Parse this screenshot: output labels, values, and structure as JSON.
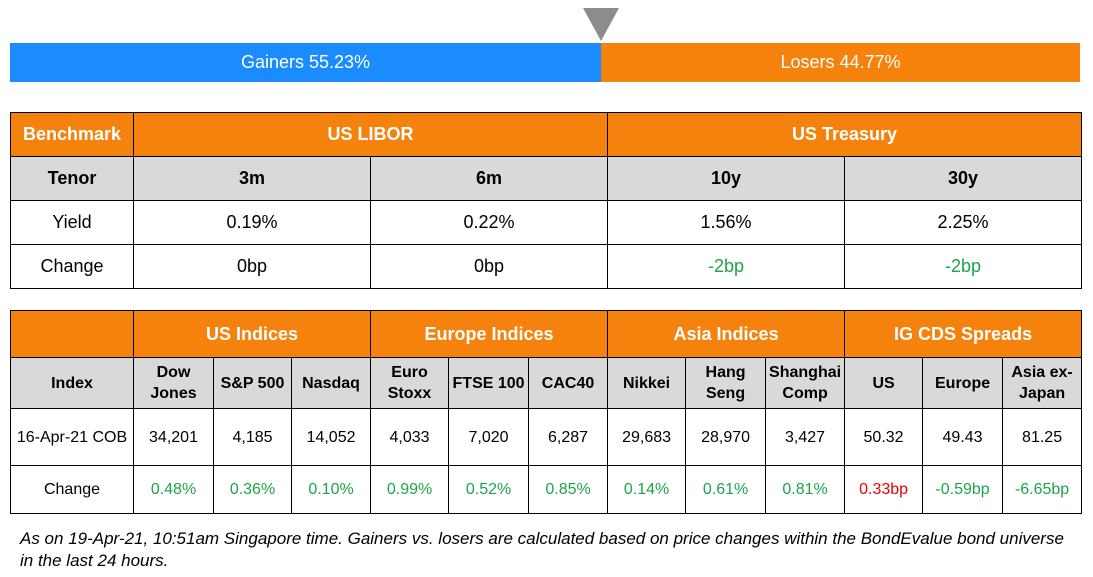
{
  "bar": {
    "gainers_label": "Gainers 55.23%",
    "losers_label": "Losers 44.77%",
    "gainers_pct": 55.23,
    "losers_pct": 44.77,
    "gainers_color": "#1a8cff",
    "losers_color": "#f5820d",
    "marker_icon": "triangle-down-icon"
  },
  "rates_table": {
    "benchmark_label": "Benchmark",
    "group_libor": "US LIBOR",
    "group_treasury": "US Treasury",
    "tenor_label": "Tenor",
    "tenors": [
      "3m",
      "6m",
      "10y",
      "30y"
    ],
    "yield_label": "Yield",
    "yields": [
      "0.19%",
      "0.22%",
      "1.56%",
      "2.25%"
    ],
    "change_label": "Change",
    "changes": [
      "0bp",
      "0bp",
      "-2bp",
      "-2bp"
    ]
  },
  "indices_table": {
    "groups": [
      "US Indices",
      "Europe Indices",
      "Asia Indices",
      "IG CDS Spreads"
    ],
    "index_label": "Index",
    "columns": [
      [
        "Dow",
        "Jones"
      ],
      [
        "S&P 500"
      ],
      [
        "Nasdaq"
      ],
      [
        "Euro",
        "Stoxx"
      ],
      [
        "FTSE 100"
      ],
      [
        "CAC40"
      ],
      [
        "Nikkei"
      ],
      [
        "Hang",
        "Seng"
      ],
      [
        "Shanghai",
        "Comp"
      ],
      [
        "US"
      ],
      [
        "Europe"
      ],
      [
        "Asia ex-",
        "Japan"
      ]
    ],
    "date_label": "16-Apr-21 COB",
    "values": [
      "34,201",
      "4,185",
      "14,052",
      "4,033",
      "7,020",
      "6,287",
      "29,683",
      "28,970",
      "3,427",
      "50.32",
      "49.43",
      "81.25"
    ],
    "change_label": "Change",
    "changes": [
      "0.48%",
      "0.36%",
      "0.10%",
      "0.99%",
      "0.52%",
      "0.85%",
      "0.14%",
      "0.61%",
      "0.81%",
      "0.33bp",
      "-0.59bp",
      "-6.65bp"
    ]
  },
  "colors": {
    "header_orange": "#f5820d",
    "header_grey": "#d9d9d9",
    "positive_green": "#1fa34a",
    "negative_red": "#e60000"
  },
  "footnote": "As on 19-Apr-21, 10:51am Singapore time. Gainers vs. losers are calculated based on price changes within the BondEvalue bond universe in the last 24 hours."
}
